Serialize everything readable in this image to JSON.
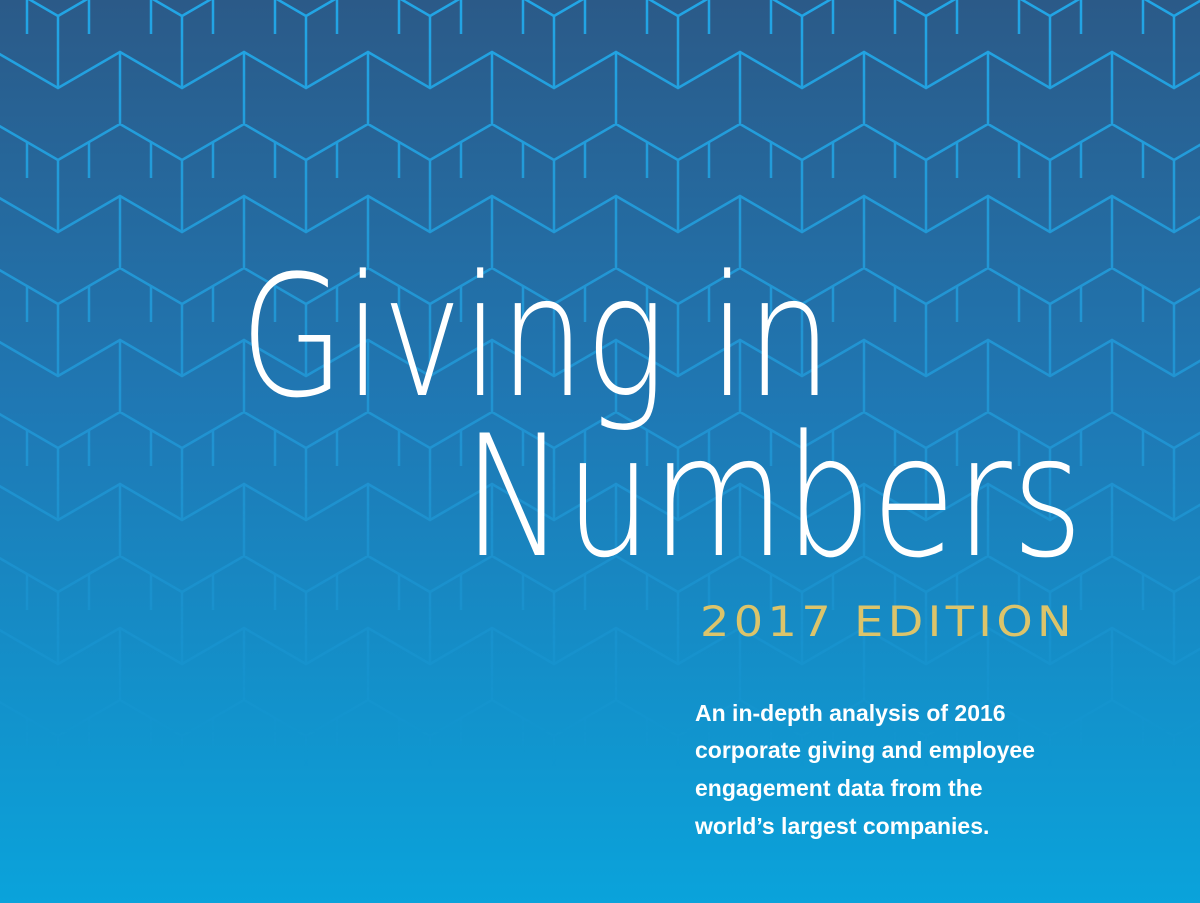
{
  "title": {
    "lines": [
      "Giving in",
      "Numbers"
    ]
  },
  "edition": "2017 EDITION",
  "description": {
    "lines": [
      "An in-depth analysis of 2016",
      "corporate giving and employee",
      "engagement data from the",
      "world’s largest companies."
    ]
  }
}
